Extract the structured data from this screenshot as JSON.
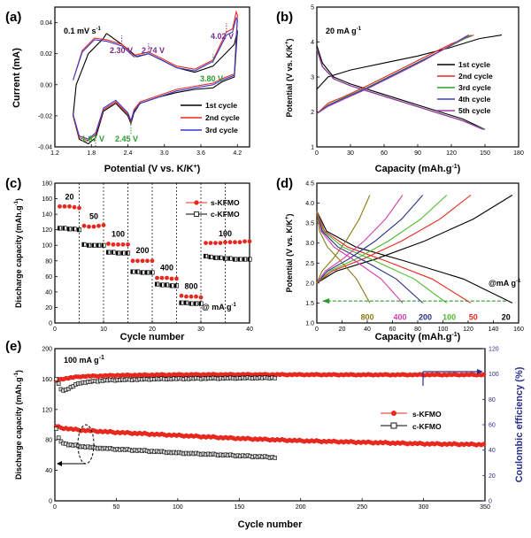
{
  "colors": {
    "black": "#000000",
    "red": "#e8281e",
    "blue": "#3a3ad0",
    "green": "#2e9b2e",
    "purple": "#7a2a8f",
    "pink": "#d63fa8",
    "navy": "#2b2f8a",
    "lime": "#4cbb2a",
    "olive": "#8a7a12",
    "grey": "#9a9a9a"
  },
  "chart_data": [
    {
      "panel": "(a)",
      "type": "line",
      "xlabel": "Potential (V vs. K/K",
      "xlabel_sup": "+",
      "xlabel_end": ")",
      "ylabel": "Current (mA)",
      "xlim": [
        1.2,
        4.4
      ],
      "ylim": [
        -0.04,
        0.05
      ],
      "xticks": [
        "1.2",
        "1.8",
        "2.4",
        "3.0",
        "3.6",
        "4.2"
      ],
      "yticks": [
        "-0.04",
        "-0.02",
        "0.00",
        "0.02",
        "0.04"
      ],
      "scan_rate": "0.1 mV s",
      "scan_rate_sup": "-1",
      "annotations": {
        "purple": [
          "2.30 V",
          "2.74 V",
          "4.02 V"
        ],
        "green": [
          "3.80 V",
          "1.87 V",
          "2.45 V"
        ]
      },
      "series": [
        {
          "name": "1st cycle",
          "color": "#000000",
          "x": [
            2.05,
            2.3,
            2.55,
            2.74,
            2.95,
            3.2,
            3.5,
            3.8,
            4.0,
            4.15,
            4.2,
            4.15,
            3.95,
            3.8,
            3.5,
            3.2,
            2.9,
            2.6,
            2.5,
            2.45,
            2.4,
            2.2,
            2.0,
            1.87,
            1.75,
            1.6,
            1.5,
            1.55,
            1.75,
            2.0,
            2.05
          ],
          "y": [
            0.033,
            0.026,
            0.018,
            0.02,
            0.016,
            0.011,
            0.008,
            0.012,
            0.02,
            0.026,
            0.035,
            0.005,
            0.002,
            -0.002,
            -0.003,
            -0.005,
            -0.008,
            -0.012,
            -0.018,
            -0.025,
            -0.02,
            -0.012,
            -0.017,
            -0.034,
            -0.038,
            -0.035,
            -0.02,
            0.0,
            0.02,
            0.03,
            0.033
          ]
        },
        {
          "name": "2nd cycle",
          "color": "#e8281e",
          "x": [
            1.5,
            1.65,
            1.85,
            2.05,
            2.3,
            2.5,
            2.74,
            2.95,
            3.2,
            3.5,
            3.8,
            4.02,
            4.12,
            4.18,
            4.2,
            4.15,
            3.95,
            3.8,
            3.5,
            3.2,
            2.9,
            2.6,
            2.5,
            2.45,
            2.4,
            2.2,
            2.0,
            1.87,
            1.75,
            1.6,
            1.5
          ],
          "y": [
            0.003,
            0.022,
            0.03,
            0.029,
            0.026,
            0.019,
            0.021,
            0.017,
            0.012,
            0.01,
            0.016,
            0.034,
            0.036,
            0.047,
            0.045,
            0.007,
            0.004,
            0.001,
            -0.001,
            -0.003,
            -0.007,
            -0.011,
            -0.016,
            -0.024,
            -0.019,
            -0.011,
            -0.016,
            -0.032,
            -0.036,
            -0.034,
            -0.02
          ]
        },
        {
          "name": "3rd cycle",
          "color": "#3a3ad0",
          "x": [
            1.5,
            1.65,
            1.85,
            2.05,
            2.3,
            2.5,
            2.74,
            2.95,
            3.2,
            3.5,
            3.8,
            4.02,
            4.12,
            4.18,
            4.2,
            4.15,
            3.95,
            3.8,
            3.5,
            3.2,
            2.9,
            2.6,
            2.5,
            2.45,
            2.4,
            2.2,
            2.0,
            1.87,
            1.75,
            1.6,
            1.5
          ],
          "y": [
            0.003,
            0.021,
            0.029,
            0.028,
            0.025,
            0.018,
            0.02,
            0.016,
            0.011,
            0.009,
            0.015,
            0.032,
            0.034,
            0.043,
            0.042,
            0.006,
            0.003,
            0.0,
            -0.002,
            -0.004,
            -0.008,
            -0.012,
            -0.017,
            -0.023,
            -0.018,
            -0.01,
            -0.015,
            -0.031,
            -0.035,
            -0.033,
            -0.019
          ]
        }
      ]
    },
    {
      "panel": "(b)",
      "type": "line",
      "xlabel": "Capacity (mAh.g",
      "xlabel_sup": "-1",
      "xlabel_end": ")",
      "ylabel": "Potential (V vs. K/K",
      "ylabel_sup": "+",
      "ylabel_end": ")",
      "xlim": [
        0,
        180
      ],
      "ylim": [
        1,
        5
      ],
      "xticks": [
        "0",
        "30",
        "60",
        "90",
        "120",
        "150",
        "180"
      ],
      "yticks": [
        "1",
        "2",
        "3",
        "4",
        "5"
      ],
      "rate_label": "20 mA g",
      "rate_label_sup": "-1",
      "series": [
        {
          "name": "1st cycle",
          "color": "#000000",
          "charge": {
            "x": [
              0,
              10,
              30,
              60,
              90,
              120,
              145,
              165
            ],
            "y": [
              2.65,
              3.0,
              3.2,
              3.4,
              3.6,
              3.85,
              4.1,
              4.2
            ]
          },
          "discharge": {
            "x": [
              0,
              5,
              15,
              30,
              50,
              80,
              110,
              130,
              150
            ],
            "y": [
              3.9,
              3.4,
              3.0,
              2.8,
              2.6,
              2.3,
              2.0,
              1.8,
              1.5
            ]
          }
        },
        {
          "name": "2nd cycle",
          "color": "#e8281e",
          "charge": {
            "x": [
              0,
              10,
              25,
              45,
              70,
              95,
              120,
              140
            ],
            "y": [
              1.95,
              2.25,
              2.45,
              2.75,
              3.15,
              3.55,
              3.95,
              4.2
            ]
          },
          "discharge": {
            "x": [
              0,
              5,
              15,
              30,
              50,
              80,
              110,
              130,
              150
            ],
            "y": [
              3.8,
              3.3,
              2.95,
              2.75,
              2.55,
              2.25,
              1.95,
              1.75,
              1.5
            ]
          }
        },
        {
          "name": "3rd cycle",
          "color": "#2e9b2e",
          "charge": {
            "x": [
              0,
              10,
              25,
              45,
              70,
              95,
              120,
              138
            ],
            "y": [
              1.95,
              2.2,
              2.42,
              2.7,
              3.1,
              3.5,
              3.9,
              4.2
            ]
          },
          "discharge": {
            "x": [
              0,
              5,
              15,
              30,
              50,
              80,
              110,
              130,
              150
            ],
            "y": [
              3.8,
              3.3,
              2.95,
              2.75,
              2.55,
              2.25,
              1.95,
              1.75,
              1.5
            ]
          }
        },
        {
          "name": "4th cycle",
          "color": "#3a3ad0",
          "charge": {
            "x": [
              0,
              10,
              25,
              45,
              70,
              95,
              118,
              136
            ],
            "y": [
              1.95,
              2.18,
              2.4,
              2.68,
              3.08,
              3.48,
              3.88,
              4.2
            ]
          },
          "discharge": {
            "x": [
              0,
              5,
              15,
              30,
              50,
              80,
              110,
              130,
              149
            ],
            "y": [
              3.8,
              3.3,
              2.95,
              2.75,
              2.55,
              2.25,
              1.95,
              1.75,
              1.5
            ]
          }
        },
        {
          "name": "5th cycle",
          "color": "#a03aa0",
          "charge": {
            "x": [
              0,
              10,
              25,
              45,
              70,
              95,
              117,
              135
            ],
            "y": [
              1.95,
              2.16,
              2.38,
              2.66,
              3.06,
              3.46,
              3.86,
              4.2
            ]
          },
          "discharge": {
            "x": [
              0,
              5,
              15,
              30,
              50,
              80,
              110,
              130,
              148
            ],
            "y": [
              3.8,
              3.3,
              2.95,
              2.75,
              2.55,
              2.25,
              1.95,
              1.75,
              1.5
            ]
          }
        }
      ]
    },
    {
      "panel": "(c)",
      "type": "scatter",
      "xlabel": "Cycle number",
      "ylabel": "Discharge capacity (mAh.g",
      "ylabel_sup": "-1",
      "ylabel_end": ")",
      "xlim": [
        0,
        40
      ],
      "ylim": [
        0,
        180
      ],
      "xticks": [
        "0",
        "10",
        "20",
        "30",
        "40"
      ],
      "yticks": [
        "0",
        "20",
        "40",
        "60",
        "80",
        "100",
        "120",
        "140",
        "160",
        "180"
      ],
      "rate_unit_label": "@ mA g",
      "rate_unit_label_sup": "-1",
      "rate_labels": [
        "20",
        "50",
        "100",
        "200",
        "400",
        "800",
        "100"
      ],
      "rate_boundaries": [
        5,
        10,
        15,
        20,
        25,
        30,
        35
      ],
      "series": [
        {
          "name": "s-KFMO",
          "color": "#e8281e",
          "marker": "circle",
          "values": [
            150,
            150,
            150,
            149,
            148,
            125,
            124,
            124,
            125,
            126,
            102,
            101,
            101,
            101,
            101,
            80,
            80,
            80,
            80,
            80,
            58,
            58,
            58,
            57,
            57,
            35,
            34,
            34,
            34,
            33,
            103,
            103,
            103,
            103,
            104,
            104,
            104,
            104,
            105,
            105
          ]
        },
        {
          "name": "c-KFMO",
          "color": "#000000",
          "marker": "half-square",
          "values": [
            122,
            122,
            121,
            121,
            120,
            101,
            100,
            100,
            100,
            100,
            91,
            91,
            90,
            90,
            90,
            66,
            66,
            65,
            65,
            65,
            50,
            49,
            49,
            48,
            48,
            26,
            26,
            25,
            25,
            25,
            86,
            85,
            84,
            84,
            83,
            83,
            82,
            82,
            82,
            82
          ]
        }
      ]
    },
    {
      "panel": "(d)",
      "type": "line",
      "xlabel": "Capacity (mAh.g",
      "xlabel_sup": "-1",
      "xlabel_end": ")",
      "ylabel": "Potential (V vs. K/K",
      "ylabel_sup": "+",
      "ylabel_end": ")",
      "xlim": [
        0,
        160
      ],
      "ylim": [
        1,
        4.5
      ],
      "xticks": [
        "0",
        "20",
        "40",
        "60",
        "80",
        "100",
        "120",
        "140",
        "160"
      ],
      "yticks": [
        "1.0",
        "1.5",
        "2.0",
        "2.5",
        "3.0",
        "3.5",
        "4.0",
        "4.5"
      ],
      "rate_unit_label": "@mA g",
      "rate_unit_label_sup": "-1",
      "series": [
        {
          "name": "20",
          "color": "#000000",
          "capacity": 155
        },
        {
          "name": "50",
          "color": "#e8281e",
          "capacity": 122
        },
        {
          "name": "100",
          "color": "#4cbb2a",
          "capacity": 103
        },
        {
          "name": "200",
          "color": "#2b2f8a",
          "capacity": 84
        },
        {
          "name": "400",
          "color": "#d63fa8",
          "capacity": 68
        },
        {
          "name": "800",
          "color": "#8a7a12",
          "capacity": 42
        }
      ]
    },
    {
      "panel": "(e)",
      "type": "scatter",
      "xlabel": "Cycle number",
      "ylabel": "Discharge capacity (mAh.g",
      "ylabel_sup": "-1",
      "ylabel_end": ")",
      "ylabel_right": "Coulombic efficiency (%)",
      "xlim": [
        0,
        350
      ],
      "ylim": [
        0,
        200
      ],
      "ylim_right": [
        0,
        120
      ],
      "xticks": [
        "0",
        "50",
        "100",
        "150",
        "200",
        "250",
        "300",
        "350"
      ],
      "yticks": [
        "0",
        "40",
        "80",
        "120",
        "160",
        "200"
      ],
      "yticks_right": [
        "0",
        "20",
        "40",
        "60",
        "80",
        "100",
        "120"
      ],
      "rate_label": "100 mA g",
      "rate_label_sup": "-1",
      "series": [
        {
          "name": "s-KFMO",
          "color": "#e8281e",
          "marker": "circle",
          "capacity": {
            "x": [
              1,
              5,
              20,
              50,
              100,
              150,
              200,
              250,
              300,
              350
            ],
            "y": [
              98,
              96,
              93,
              90,
              86,
              82,
              79,
              77,
              75,
              74
            ]
          },
          "efficiency": {
            "x": [
              1,
              5,
              20,
              50,
              100,
              150,
              200,
              250,
              300,
              350
            ],
            "y": [
              95,
              96,
              98,
              99,
              99.5,
              99.6,
              99.5,
              99.4,
              99.4,
              99.4
            ]
          }
        },
        {
          "name": "c-KFMO",
          "color": "#000000",
          "marker": "half-square",
          "capacity": {
            "x": [
              1,
              3,
              5,
              10,
              30,
              60,
              100,
              140,
              180
            ],
            "y": [
              95,
              82,
              78,
              74,
              70,
              67,
              63,
              60,
              57
            ]
          },
          "efficiency": {
            "x": [
              1,
              3,
              5,
              8,
              12,
              20,
              40,
              80,
              120,
              180
            ],
            "y": [
              96,
              92,
              88,
              87,
              89,
              93,
              95,
              96,
              96.5,
              97
            ]
          }
        }
      ]
    }
  ]
}
